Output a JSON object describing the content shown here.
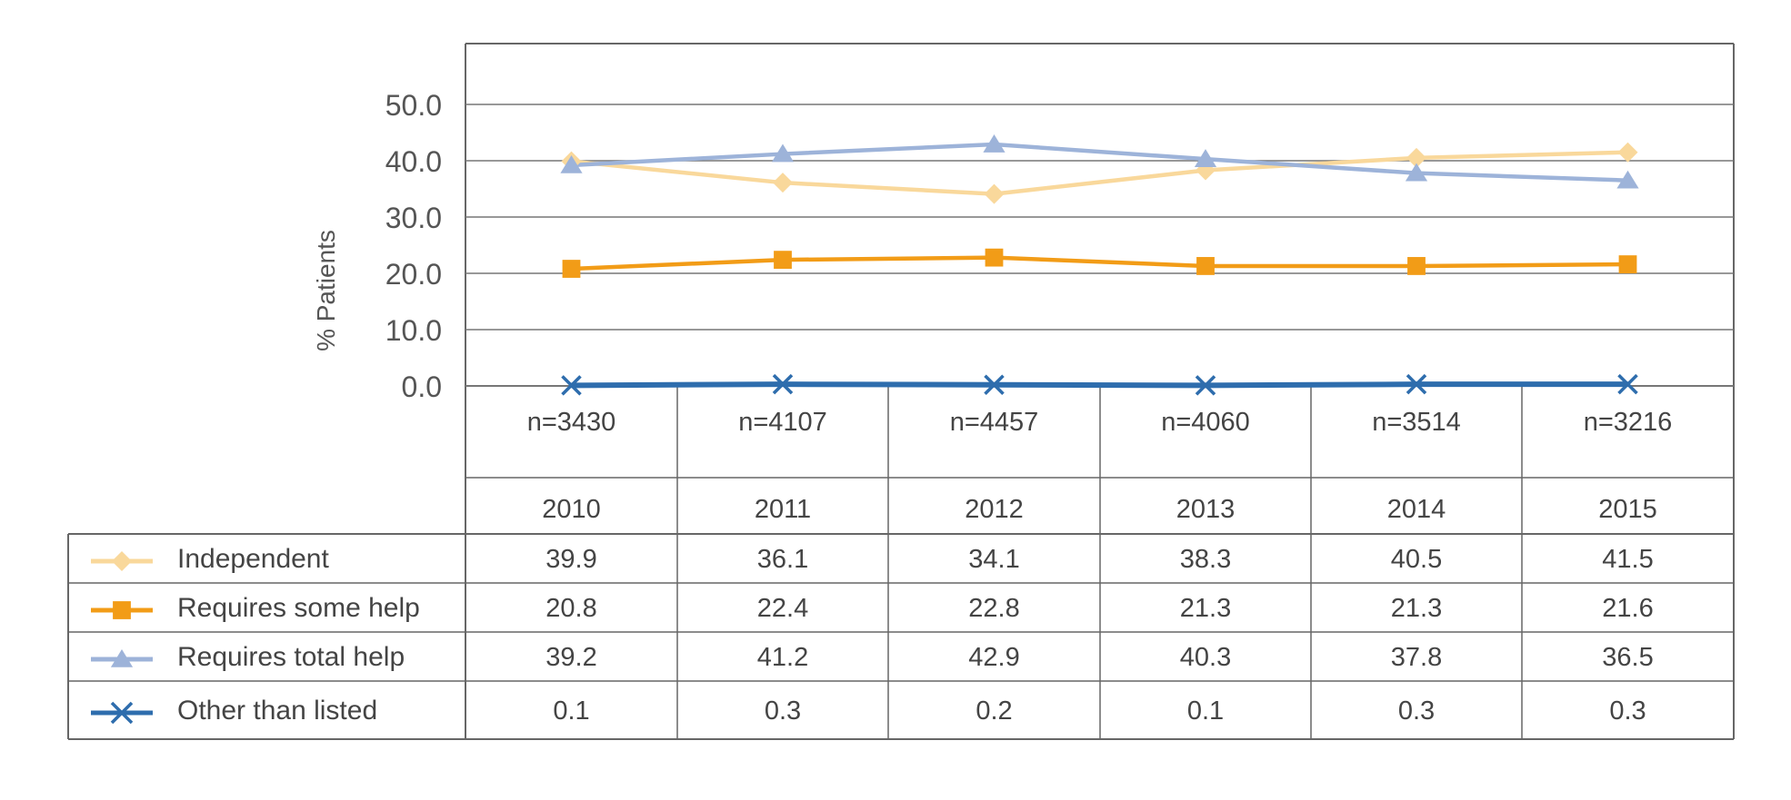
{
  "chart_data": {
    "type": "line",
    "ylabel": "% Patients",
    "ylim": [
      0,
      50
    ],
    "yticks": [
      "0.0",
      "10.0",
      "20.0",
      "30.0",
      "40.0",
      "50.0"
    ],
    "grid": true,
    "categories": [
      "2010",
      "2011",
      "2012",
      "2013",
      "2014",
      "2015"
    ],
    "sample_sizes": [
      "n=3430",
      "n=4107",
      "n=4457",
      "n=4060",
      "n=3514",
      "n=3216"
    ],
    "series": [
      {
        "name": "Independent",
        "color": "#F9D89B",
        "marker": "diamond",
        "values": [
          39.9,
          36.1,
          34.1,
          38.3,
          40.5,
          41.5
        ],
        "labels": [
          "39.9",
          "36.1",
          "34.1",
          "38.3",
          "40.5",
          "41.5"
        ]
      },
      {
        "name": "Requires some help",
        "color": "#F29C17",
        "marker": "square",
        "values": [
          20.8,
          22.4,
          22.8,
          21.3,
          21.3,
          21.6
        ],
        "labels": [
          "20.8",
          "22.4",
          "22.8",
          "21.3",
          "21.3",
          "21.6"
        ]
      },
      {
        "name": "Requires total help",
        "color": "#9DB3D9",
        "marker": "triangle",
        "values": [
          39.2,
          41.2,
          42.9,
          40.3,
          37.8,
          36.5
        ],
        "labels": [
          "39.2",
          "41.2",
          "42.9",
          "40.3",
          "37.8",
          "36.5"
        ]
      },
      {
        "name": "Other than listed",
        "color": "#2E6DAD",
        "marker": "x",
        "values": [
          0.1,
          0.3,
          0.2,
          0.1,
          0.3,
          0.3
        ],
        "labels": [
          "0.1",
          "0.3",
          "0.2",
          "0.1",
          "0.3",
          "0.3"
        ]
      }
    ]
  }
}
